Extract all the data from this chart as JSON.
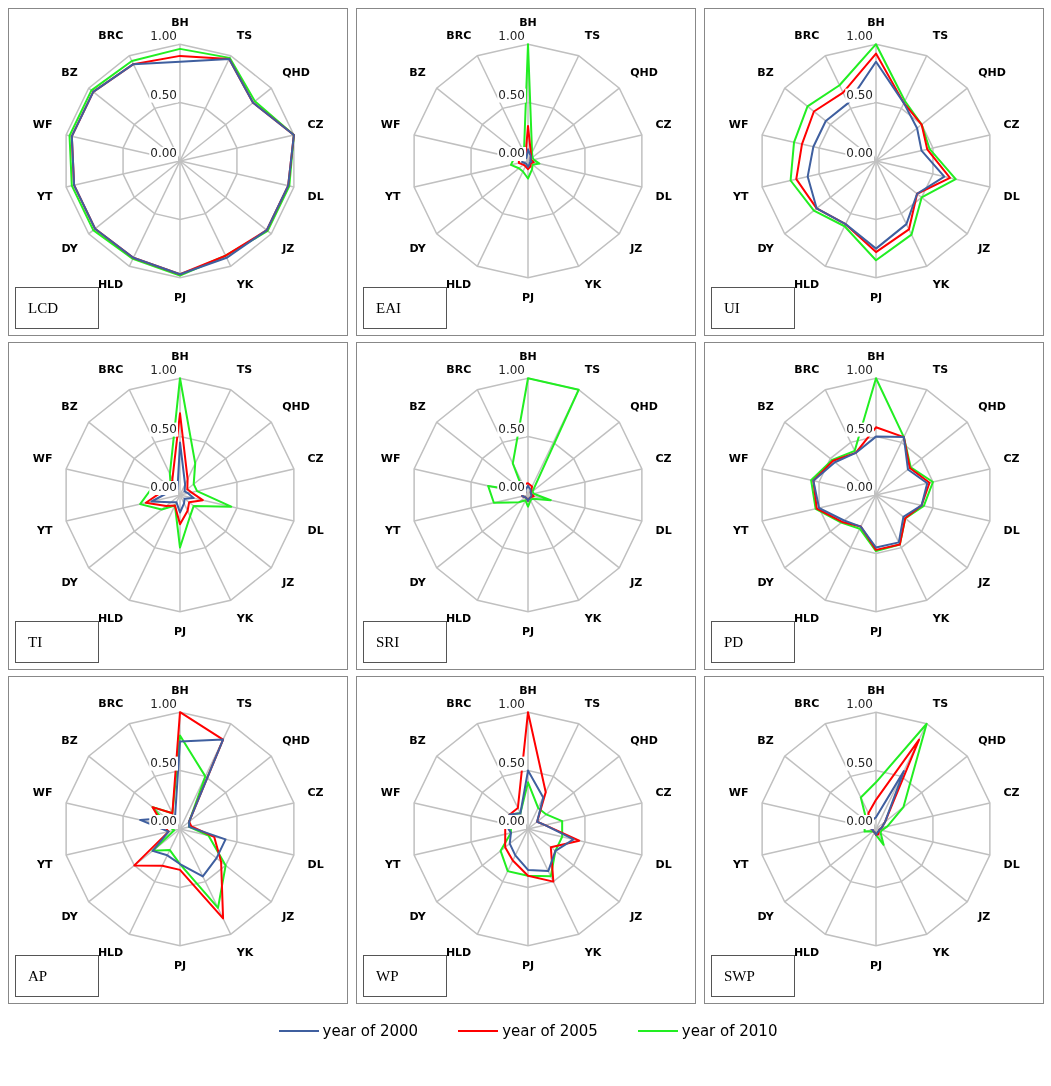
{
  "chart_data": [
    {
      "type": "radar",
      "title": "LCD",
      "categories": [
        "BH",
        "TS",
        "QHD",
        "CZ",
        "DL",
        "JZ",
        "YK",
        "PJ",
        "HLD",
        "DY",
        "YT",
        "WF",
        "BZ",
        "BRC"
      ],
      "ylim": [
        0,
        1
      ],
      "yticks": [
        {
          "value": 0,
          "label": "0.00"
        },
        {
          "value": 0.5,
          "label": "0.50"
        },
        {
          "value": 1,
          "label": "1.00"
        }
      ],
      "grid": true,
      "series": [
        {
          "color": "#3f5f9f",
          "values": [
            0.85,
            0.97,
            0.8,
            1.0,
            0.95,
            0.95,
            0.92,
            0.97,
            0.92,
            0.93,
            0.93,
            0.95,
            0.95,
            0.92
          ]
        },
        {
          "color": "#ff0000",
          "values": [
            0.9,
            0.97,
            0.8,
            1.0,
            0.95,
            0.95,
            0.9,
            0.97,
            0.92,
            0.93,
            0.93,
            0.95,
            0.95,
            0.92
          ]
        },
        {
          "color": "#22ee22",
          "values": [
            0.96,
            0.98,
            0.82,
            1.0,
            0.96,
            0.96,
            0.9,
            0.98,
            0.93,
            0.95,
            0.95,
            0.97,
            0.97,
            0.95
          ]
        }
      ]
    },
    {
      "type": "radar",
      "title": "EAI",
      "categories": [
        "BH",
        "TS",
        "QHD",
        "CZ",
        "DL",
        "JZ",
        "YK",
        "PJ",
        "HLD",
        "DY",
        "YT",
        "WF",
        "BZ",
        "BRC"
      ],
      "ylim": [
        0,
        1
      ],
      "yticks": [
        {
          "value": 0,
          "label": "0.00"
        },
        {
          "value": 0.5,
          "label": "0.50"
        },
        {
          "value": 1,
          "label": "1.00"
        }
      ],
      "grid": true,
      "series": [
        {
          "color": "#3f5f9f",
          "values": [
            0.1,
            0.05,
            0.03,
            0.02,
            0.03,
            0.02,
            0.03,
            0.05,
            0.03,
            0.03,
            0.05,
            0.05,
            0.03,
            0.03
          ]
        },
        {
          "color": "#ff0000",
          "values": [
            0.3,
            0.06,
            0.03,
            0.03,
            0.05,
            0.03,
            0.05,
            0.07,
            0.05,
            0.05,
            0.08,
            0.08,
            0.05,
            0.05
          ]
        },
        {
          "color": "#22ee22",
          "values": [
            1.0,
            0.08,
            0.05,
            0.05,
            0.1,
            0.05,
            0.08,
            0.15,
            0.1,
            0.1,
            0.15,
            0.12,
            0.08,
            0.08
          ]
        }
      ]
    },
    {
      "type": "radar",
      "title": "UI",
      "categories": [
        "BH",
        "TS",
        "QHD",
        "CZ",
        "DL",
        "JZ",
        "YK",
        "PJ",
        "HLD",
        "DY",
        "YT",
        "WF",
        "BZ",
        "BRC"
      ],
      "ylim": [
        0,
        1
      ],
      "yticks": [
        {
          "value": 0,
          "label": "0.00"
        },
        {
          "value": 0.5,
          "label": "0.50"
        },
        {
          "value": 1,
          "label": "1.00"
        }
      ],
      "grid": true,
      "series": [
        {
          "color": "#3f5f9f",
          "values": [
            0.85,
            0.55,
            0.45,
            0.4,
            0.6,
            0.45,
            0.6,
            0.75,
            0.6,
            0.65,
            0.6,
            0.55,
            0.55,
            0.55
          ]
        },
        {
          "color": "#ff0000",
          "values": [
            0.92,
            0.55,
            0.5,
            0.45,
            0.65,
            0.45,
            0.65,
            0.78,
            0.6,
            0.65,
            0.7,
            0.65,
            0.68,
            0.65
          ]
        },
        {
          "color": "#22ee22",
          "values": [
            1.0,
            0.57,
            0.5,
            0.47,
            0.7,
            0.5,
            0.7,
            0.85,
            0.62,
            0.68,
            0.75,
            0.72,
            0.75,
            0.72
          ]
        }
      ]
    },
    {
      "type": "radar",
      "title": "TI",
      "categories": [
        "BH",
        "TS",
        "QHD",
        "CZ",
        "DL",
        "JZ",
        "YK",
        "PJ",
        "HLD",
        "DY",
        "YT",
        "WF",
        "BZ",
        "BRC"
      ],
      "ylim": [
        0,
        1
      ],
      "yticks": [
        {
          "value": 0,
          "label": "0.00"
        },
        {
          "value": 0.5,
          "label": "0.50"
        },
        {
          "value": 1,
          "label": "1.00"
        }
      ],
      "grid": true,
      "series": [
        {
          "color": "#3f5f9f",
          "values": [
            0.45,
            0.1,
            0.05,
            0.07,
            0.12,
            0.05,
            0.08,
            0.15,
            0.07,
            0.1,
            0.25,
            0.1,
            0.05,
            0.05
          ]
        },
        {
          "color": "#ff0000",
          "values": [
            0.7,
            0.15,
            0.08,
            0.1,
            0.2,
            0.1,
            0.15,
            0.25,
            0.1,
            0.15,
            0.3,
            0.15,
            0.1,
            0.15
          ]
        },
        {
          "color": "#22ee22",
          "values": [
            1.0,
            0.3,
            0.15,
            0.15,
            0.45,
            0.15,
            0.2,
            0.45,
            0.1,
            0.2,
            0.35,
            0.25,
            0.1,
            0.2
          ]
        }
      ]
    },
    {
      "type": "radar",
      "title": "SRI",
      "categories": [
        "BH",
        "TS",
        "QHD",
        "CZ",
        "DL",
        "JZ",
        "YK",
        "PJ",
        "HLD",
        "DY",
        "YT",
        "WF",
        "BZ",
        "BRC"
      ],
      "ylim": [
        0,
        1
      ],
      "yticks": [
        {
          "value": 0,
          "label": "0.00"
        },
        {
          "value": 0.5,
          "label": "0.50"
        },
        {
          "value": 1,
          "label": "1.00"
        }
      ],
      "grid": true,
      "series": [
        {
          "color": "#3f5f9f",
          "values": [
            0.08,
            0.05,
            0.03,
            0.03,
            0.03,
            0.03,
            0.03,
            0.05,
            0.03,
            0.03,
            0.05,
            0.05,
            0.03,
            0.05
          ]
        },
        {
          "color": "#ff0000",
          "values": [
            0.1,
            0.08,
            0.03,
            0.03,
            0.05,
            0.03,
            0.03,
            0.05,
            0.03,
            0.03,
            0.05,
            0.05,
            0.03,
            0.1
          ]
        },
        {
          "color": "#22ee22",
          "values": [
            1.0,
            1.0,
            0.05,
            0.05,
            0.2,
            0.05,
            0.05,
            0.1,
            0.05,
            0.1,
            0.3,
            0.35,
            0.05,
            0.3
          ]
        }
      ]
    },
    {
      "type": "radar",
      "title": "PD",
      "categories": [
        "BH",
        "TS",
        "QHD",
        "CZ",
        "DL",
        "JZ",
        "YK",
        "PJ",
        "HLD",
        "DY",
        "YT",
        "WF",
        "BZ",
        "BRC"
      ],
      "ylim": [
        0,
        1
      ],
      "yticks": [
        {
          "value": 0,
          "label": "0.00"
        },
        {
          "value": 0.5,
          "label": "0.50"
        },
        {
          "value": 1,
          "label": "1.00"
        }
      ],
      "grid": true,
      "series": [
        {
          "color": "#3f5f9f",
          "values": [
            0.5,
            0.55,
            0.35,
            0.45,
            0.4,
            0.3,
            0.45,
            0.45,
            0.3,
            0.35,
            0.5,
            0.55,
            0.45,
            0.4
          ]
        },
        {
          "color": "#ff0000",
          "values": [
            0.58,
            0.55,
            0.37,
            0.47,
            0.4,
            0.32,
            0.47,
            0.47,
            0.3,
            0.37,
            0.52,
            0.55,
            0.47,
            0.4
          ]
        },
        {
          "color": "#22ee22",
          "values": [
            1.0,
            0.55,
            0.38,
            0.5,
            0.42,
            0.32,
            0.47,
            0.48,
            0.32,
            0.38,
            0.53,
            0.57,
            0.48,
            0.42
          ]
        }
      ]
    },
    {
      "type": "radar",
      "title": "AP",
      "categories": [
        "BH",
        "TS",
        "QHD",
        "CZ",
        "DL",
        "JZ",
        "YK",
        "PJ",
        "HLD",
        "DY",
        "YT",
        "WF",
        "BZ",
        "BRC"
      ],
      "ylim": [
        0,
        1
      ],
      "yticks": [
        {
          "value": 0,
          "label": "0.00"
        },
        {
          "value": 0.5,
          "label": "0.50"
        },
        {
          "value": 1,
          "label": "1.00"
        }
      ],
      "grid": true,
      "series": [
        {
          "color": "#3f5f9f",
          "values": [
            0.75,
            0.85,
            0.1,
            0.08,
            0.4,
            0.4,
            0.45,
            0.3,
            0.25,
            0.3,
            0.1,
            0.35,
            0.15,
            0.1
          ]
        },
        {
          "color": "#ff0000",
          "values": [
            1.0,
            0.85,
            0.1,
            0.1,
            0.3,
            0.45,
            0.85,
            0.35,
            0.35,
            0.5,
            0.1,
            0.15,
            0.3,
            0.15
          ]
        },
        {
          "color": "#22ee22",
          "values": [
            0.8,
            0.5,
            0.1,
            0.08,
            0.25,
            0.5,
            0.75,
            0.3,
            0.2,
            0.3,
            0.05,
            0.1,
            0.3,
            0.15
          ]
        }
      ]
    },
    {
      "type": "radar",
      "title": "WP",
      "categories": [
        "BH",
        "TS",
        "QHD",
        "CZ",
        "DL",
        "JZ",
        "YK",
        "PJ",
        "HLD",
        "DY",
        "YT",
        "WF",
        "BZ",
        "BRC"
      ],
      "ylim": [
        0,
        1
      ],
      "yticks": [
        {
          "value": 0,
          "label": "0.00"
        },
        {
          "value": 0.5,
          "label": "0.50"
        },
        {
          "value": 1,
          "label": "1.00"
        }
      ],
      "grid": true,
      "legend": "bottom",
      "series": [
        {
          "name": "year of 2000",
          "color": "#3f5f9f",
          "values": [
            0.5,
            0.3,
            0.1,
            0.15,
            0.4,
            0.3,
            0.4,
            0.35,
            0.25,
            0.2,
            0.15,
            0.2,
            0.2,
            0.15
          ]
        },
        {
          "name": "year of 2005",
          "color": "#ff0000",
          "values": [
            1.0,
            0.35,
            0.1,
            0.15,
            0.45,
            0.25,
            0.5,
            0.4,
            0.3,
            0.25,
            0.2,
            0.2,
            0.2,
            0.2
          ]
        },
        {
          "name": "year of 2010",
          "color": "#22ee22",
          "values": [
            0.4,
            0.2,
            0.2,
            0.3,
            0.3,
            0.3,
            0.45,
            0.4,
            0.4,
            0.3,
            0.15,
            0.15,
            0.2,
            0.15
          ]
        }
      ]
    },
    {
      "type": "radar",
      "title": "SWP",
      "categories": [
        "BH",
        "TS",
        "QHD",
        "CZ",
        "DL",
        "JZ",
        "YK",
        "PJ",
        "HLD",
        "DY",
        "YT",
        "WF",
        "BZ",
        "BRC"
      ],
      "ylim": [
        0,
        1
      ],
      "yticks": [
        {
          "value": 0,
          "label": "0.00"
        },
        {
          "value": 0.5,
          "label": "0.50"
        },
        {
          "value": 1,
          "label": "1.00"
        }
      ],
      "grid": true,
      "series": [
        {
          "color": "#3f5f9f",
          "values": [
            0.1,
            0.55,
            0.1,
            0.05,
            0.03,
            0.03,
            0.03,
            0.05,
            0.03,
            0.03,
            0.03,
            0.05,
            0.05,
            0.08
          ]
        },
        {
          "color": "#ff0000",
          "values": [
            0.25,
            0.85,
            0.1,
            0.05,
            0.03,
            0.03,
            0.05,
            0.05,
            0.03,
            0.03,
            0.03,
            0.05,
            0.08,
            0.15
          ]
        },
        {
          "color": "#22ee22",
          "values": [
            0.4,
            1.0,
            0.3,
            0.1,
            0.05,
            0.05,
            0.15,
            0.05,
            0.03,
            0.03,
            0.1,
            0.1,
            0.1,
            0.3
          ]
        }
      ]
    }
  ]
}
